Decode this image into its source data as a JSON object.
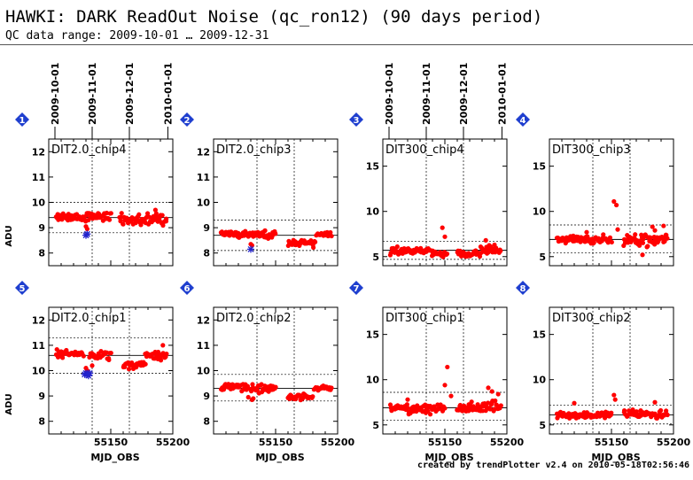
{
  "page": {
    "title": "HAWKI: DARK ReadOut Noise (qc_ron12) (90 days period)",
    "subtitle": "QC data range: 2009-10-01 … 2009-12-31",
    "footer": "created by trendPlotter v2.4 on 2010-05-18T02:56:46"
  },
  "colors": {
    "points": "#ff0000",
    "outliers": "#2222cc",
    "badge": "#1f3fcf",
    "reference": "#000000"
  },
  "chart_data": [
    {
      "type": "scatter",
      "panel": "1",
      "title": "DIT2.0_chip4",
      "ylabel": "ADU",
      "xlabel": "",
      "xlim": [
        55100,
        55200
      ],
      "ylim": [
        7.5,
        12.5
      ],
      "yticks": [
        8,
        9,
        10,
        11,
        12
      ],
      "xticks": [],
      "date_ticks": [
        {
          "mjd": 55105,
          "label": "2009-10-01"
        },
        {
          "mjd": 55135,
          "label": "2009-11-01"
        },
        {
          "mjd": 55165,
          "label": "2009-12-01"
        },
        {
          "mjd": 55196,
          "label": "2010-01-01"
        }
      ],
      "median": 9.4,
      "band": [
        8.8,
        10.0
      ],
      "clusters": [
        [
          55106,
          55123,
          9.45,
          0.13
        ],
        [
          55125,
          55150,
          9.45,
          0.14
        ],
        [
          55157,
          55175,
          9.3,
          0.16
        ],
        [
          55176,
          55195,
          9.35,
          0.16
        ]
      ],
      "extra_points": [
        [
          55131,
          8.95
        ],
        [
          55130,
          9.05
        ],
        [
          55186,
          9.7
        ]
      ],
      "outliers": [
        [
          55130,
          8.7
        ],
        [
          55131,
          8.75
        ]
      ],
      "seed": 11
    },
    {
      "type": "scatter",
      "panel": "2",
      "title": "DIT2.0_chip3",
      "ylabel": "",
      "xlabel": "",
      "xlim": [
        55100,
        55200
      ],
      "ylim": [
        7.5,
        12.5
      ],
      "yticks": [
        8,
        9,
        10,
        11,
        12
      ],
      "xticks": [],
      "median": 8.7,
      "band": [
        8.1,
        9.3
      ],
      "clusters": [
        [
          55106,
          55150,
          8.75,
          0.1
        ],
        [
          55160,
          55182,
          8.4,
          0.09
        ],
        [
          55183,
          55195,
          8.75,
          0.08
        ]
      ],
      "extra_points": [
        [
          55131,
          8.3
        ],
        [
          55130,
          8.35
        ]
      ],
      "outliers": [
        [
          55130,
          8.15
        ]
      ],
      "seed": 12
    },
    {
      "type": "scatter",
      "panel": "3",
      "title": "DIT300_chip4",
      "ylabel": "",
      "xlabel": "",
      "xlim": [
        55100,
        55200
      ],
      "ylim": [
        4,
        18
      ],
      "yticks": [
        5,
        10,
        15
      ],
      "xticks": [],
      "date_ticks": [
        {
          "mjd": 55105,
          "label": "2009-10-01"
        },
        {
          "mjd": 55135,
          "label": "2009-11-01"
        },
        {
          "mjd": 55165,
          "label": "2009-12-01"
        },
        {
          "mjd": 55196,
          "label": "2010-01-01"
        }
      ],
      "median": 5.7,
      "band": [
        4.7,
        6.7
      ],
      "clusters": [
        [
          55106,
          55140,
          5.6,
          0.28
        ],
        [
          55140,
          55152,
          5.3,
          0.2
        ],
        [
          55160,
          55178,
          5.3,
          0.3
        ],
        [
          55178,
          55195,
          5.7,
          0.3
        ]
      ],
      "extra_points": [
        [
          55148,
          8.2
        ],
        [
          55150,
          7.2
        ],
        [
          55183,
          6.8
        ],
        [
          55190,
          6.3
        ]
      ],
      "outliers": [],
      "seed": 13
    },
    {
      "type": "scatter",
      "panel": "4",
      "title": "DIT300_chip3",
      "ylabel": "",
      "xlabel": "",
      "xlim": [
        55100,
        55200
      ],
      "ylim": [
        4,
        18
      ],
      "yticks": [
        5,
        10,
        15
      ],
      "xticks": [],
      "median": 6.9,
      "band": [
        5.4,
        8.5
      ],
      "clusters": [
        [
          55106,
          55150,
          6.9,
          0.3
        ],
        [
          55160,
          55195,
          6.9,
          0.45
        ]
      ],
      "extra_points": [
        [
          55152,
          11.1
        ],
        [
          55154,
          10.7
        ],
        [
          55155,
          8.0
        ],
        [
          55130,
          7.7
        ],
        [
          55183,
          8.3
        ],
        [
          55192,
          8.4
        ],
        [
          55175,
          5.2
        ],
        [
          55185,
          7.9
        ]
      ],
      "outliers": [],
      "seed": 14
    },
    {
      "type": "scatter",
      "panel": "5",
      "title": "DIT2.0_chip1",
      "ylabel": "ADU",
      "xlabel": "MJD_OBS",
      "xlim": [
        55100,
        55200
      ],
      "ylim": [
        7.5,
        12.5
      ],
      "yticks": [
        8,
        9,
        10,
        11,
        12
      ],
      "xticks": [
        55150,
        55200
      ],
      "median": 10.6,
      "band": [
        9.9,
        11.3
      ],
      "clusters": [
        [
          55106,
          55128,
          10.65,
          0.1
        ],
        [
          55133,
          55150,
          10.6,
          0.15
        ],
        [
          55160,
          55178,
          10.25,
          0.12
        ],
        [
          55178,
          55195,
          10.6,
          0.12
        ]
      ],
      "extra_points": [
        [
          55130,
          10.1
        ],
        [
          55131,
          10.0
        ],
        [
          55135,
          10.2
        ],
        [
          55192,
          11.0
        ]
      ],
      "outliers": [
        [
          55129,
          9.85
        ],
        [
          55130,
          9.9
        ],
        [
          55131,
          9.85
        ],
        [
          55132,
          9.8
        ],
        [
          55133,
          9.9
        ]
      ],
      "seed": 15
    },
    {
      "type": "scatter",
      "panel": "6",
      "title": "DIT2.0_chip2",
      "ylabel": "",
      "xlabel": "MJD_OBS",
      "xlim": [
        55100,
        55200
      ],
      "ylim": [
        7.5,
        12.5
      ],
      "yticks": [
        8,
        9,
        10,
        11,
        12
      ],
      "xticks": [
        55150,
        55200
      ],
      "median": 9.3,
      "band": [
        8.8,
        9.85
      ],
      "clusters": [
        [
          55106,
          55128,
          9.35,
          0.1
        ],
        [
          55130,
          55150,
          9.3,
          0.11
        ],
        [
          55160,
          55180,
          8.95,
          0.09
        ],
        [
          55181,
          55195,
          9.3,
          0.08
        ]
      ],
      "extra_points": [
        [
          55131,
          8.85
        ],
        [
          55132,
          8.9
        ],
        [
          55128,
          8.95
        ]
      ],
      "outliers": [],
      "seed": 16
    },
    {
      "type": "scatter",
      "panel": "7",
      "title": "DIT300_chip1",
      "ylabel": "",
      "xlabel": "MJD_OBS",
      "xlim": [
        55100,
        55200
      ],
      "ylim": [
        4,
        18
      ],
      "yticks": [
        5,
        10,
        15
      ],
      "xticks": [
        55150,
        55200
      ],
      "median": 6.9,
      "band": [
        5.5,
        8.6
      ],
      "clusters": [
        [
          55106,
          55150,
          6.8,
          0.35
        ],
        [
          55160,
          55195,
          6.9,
          0.45
        ]
      ],
      "extra_points": [
        [
          55152,
          11.4
        ],
        [
          55150,
          9.4
        ],
        [
          55155,
          8.2
        ],
        [
          55185,
          9.1
        ],
        [
          55188,
          8.7
        ],
        [
          55193,
          8.4
        ],
        [
          55120,
          7.8
        ]
      ],
      "outliers": [],
      "seed": 17
    },
    {
      "type": "scatter",
      "panel": "8",
      "title": "DIT300_chip2",
      "ylabel": "",
      "xlabel": "MJD_OBS",
      "xlim": [
        55100,
        55200
      ],
      "ylim": [
        4,
        18
      ],
      "yticks": [
        5,
        10,
        15
      ],
      "xticks": [
        55150,
        55200
      ],
      "median": 6.1,
      "band": [
        5.1,
        7.2
      ],
      "clusters": [
        [
          55106,
          55150,
          6.1,
          0.25
        ],
        [
          55160,
          55195,
          6.2,
          0.3
        ]
      ],
      "extra_points": [
        [
          55152,
          8.3
        ],
        [
          55153,
          7.8
        ],
        [
          55120,
          7.4
        ],
        [
          55185,
          7.5
        ]
      ],
      "outliers": [],
      "seed": 18
    }
  ]
}
